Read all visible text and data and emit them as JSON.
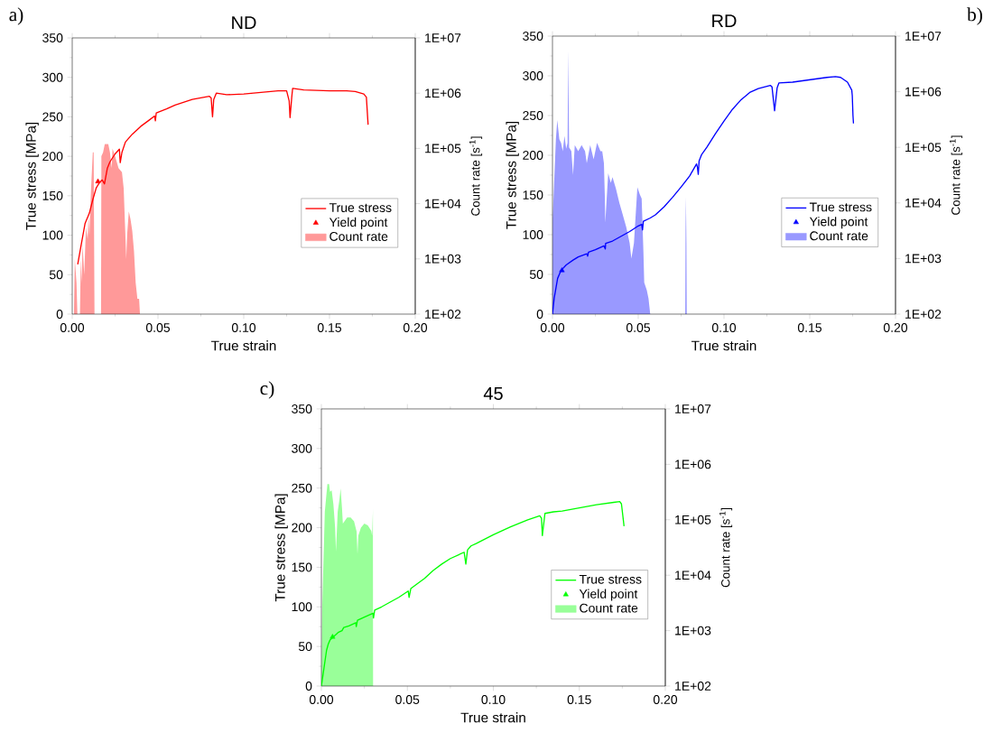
{
  "chart_data": [
    {
      "type": "line",
      "title": "ND",
      "xlabel": "True strain",
      "ylabel": "True stress [MPa]",
      "y2label": "Count rate [s$^{-1}$]",
      "annotations": [
        "a)"
      ],
      "xlim": [
        0,
        0.2
      ],
      "xticks": [
        {
          "value": 0,
          "label": "0.00"
        },
        {
          "value": 0.05,
          "label": "0.05"
        },
        {
          "value": 0.1,
          "label": "0.10"
        },
        {
          "value": 0.15,
          "label": "0.15"
        },
        {
          "value": 0.2,
          "label": "0.20"
        }
      ],
      "ylim": [
        0,
        350
      ],
      "yticks": [
        0,
        50,
        100,
        150,
        200,
        250,
        300,
        350
      ],
      "y2lim": [
        100,
        10000000
      ],
      "y2ticks": [
        {
          "value": 100,
          "label": "1E+02"
        },
        {
          "value": 1000,
          "label": "1E+03"
        },
        {
          "value": 10000,
          "label": "1E+04"
        },
        {
          "value": 100000,
          "label": "1E+05"
        },
        {
          "value": 1000000,
          "label": "1E+06"
        },
        {
          "value": 10000000,
          "label": "1E+07"
        }
      ],
      "log": "y2",
      "legend": "right",
      "series": [
        {
          "name": "True stress",
          "color": "#ff0000",
          "x": [
            0.0032,
            0.005,
            0.0075,
            0.01,
            0.012,
            0.014,
            0.016,
            0.0175,
            0.0188,
            0.0205,
            0.022,
            0.025,
            0.0275,
            0.028,
            0.029,
            0.031,
            0.035,
            0.04,
            0.045,
            0.048,
            0.0485,
            0.049,
            0.055,
            0.06,
            0.07,
            0.08,
            0.081,
            0.0818,
            0.0825,
            0.084,
            0.09,
            0.1,
            0.11,
            0.12,
            0.125,
            0.1265,
            0.127,
            0.128,
            0.1285,
            0.135,
            0.15,
            0.16,
            0.165,
            0.17,
            0.1715,
            0.1725
          ],
          "values": [
            63,
            85,
            115,
            128,
            145,
            160,
            167,
            170,
            165,
            185,
            193,
            203,
            209,
            192,
            205,
            218,
            228,
            238,
            246,
            251,
            245,
            255,
            260,
            265,
            272,
            276,
            274,
            250,
            272,
            280,
            278,
            279,
            281,
            283,
            283,
            270,
            249,
            275,
            286,
            284,
            283,
            283,
            282,
            279,
            275,
            240
          ]
        },
        {
          "name": "Yield point",
          "type": "scatter",
          "marker": "triangle",
          "color": "#ff0000",
          "x": [
            0.015
          ],
          "values": [
            168
          ]
        },
        {
          "name": "Count rate",
          "type": "area",
          "axis": "y2",
          "color": "#ff9999",
          "x": [
            0.001,
            0.0015,
            0.0025,
            0.003,
            0.0045,
            0.005,
            0.0055,
            0.006,
            0.007,
            0.008,
            0.009,
            0.0095,
            0.01,
            0.011,
            0.012,
            0.0125,
            0.013,
            0.0168,
            0.017,
            0.018,
            0.019,
            0.021,
            0.022,
            0.023,
            0.0235,
            0.025,
            0.027,
            0.029,
            0.03,
            0.0315,
            0.032,
            0.033,
            0.034,
            0.035,
            0.036,
            0.037,
            0.038,
            0.039,
            0.0395
          ],
          "values": [
            100,
            1000,
            370,
            100,
            100,
            1000,
            370,
            1900,
            520,
            3700,
            2300,
            6100,
            2700,
            19000,
            85000,
            85000,
            100,
            100,
            72000,
            85000,
            120000,
            120000,
            85000,
            44000,
            100000,
            72000,
            44000,
            37000,
            19000,
            1000,
            2700,
            7200,
            5200,
            3200,
            1400,
            370,
            190,
            190,
            100
          ]
        }
      ]
    },
    {
      "type": "line",
      "title": "RD",
      "xlabel": "True strain",
      "ylabel": "True stress [MPa]",
      "y2label": "Count rate [s$^{-1}$]",
      "annotations": [
        "b)"
      ],
      "xlim": [
        0,
        0.2
      ],
      "xticks": [
        {
          "value": 0,
          "label": "0.00"
        },
        {
          "value": 0.05,
          "label": "0.05"
        },
        {
          "value": 0.1,
          "label": "0.10"
        },
        {
          "value": 0.15,
          "label": "0.15"
        },
        {
          "value": 0.2,
          "label": "0.20"
        }
      ],
      "ylim": [
        0,
        350
      ],
      "yticks": [
        0,
        50,
        100,
        150,
        200,
        250,
        300,
        350
      ],
      "y2lim": [
        100,
        10000000
      ],
      "y2ticks": [
        {
          "value": 100,
          "label": "1E+02"
        },
        {
          "value": 1000,
          "label": "1E+03"
        },
        {
          "value": 10000,
          "label": "1E+04"
        },
        {
          "value": 100000,
          "label": "1E+05"
        },
        {
          "value": 1000000,
          "label": "1E+06"
        },
        {
          "value": 10000000,
          "label": "1E+07"
        }
      ],
      "log": "y2",
      "legend": "right",
      "series": [
        {
          "name": "True stress",
          "color": "#0000ff",
          "x": [
            0,
            0.001,
            0.003,
            0.005,
            0.008,
            0.012,
            0.015,
            0.02,
            0.0205,
            0.021,
            0.025,
            0.03,
            0.0308,
            0.031,
            0.035,
            0.04,
            0.045,
            0.05,
            0.052,
            0.0525,
            0.053,
            0.057,
            0.06,
            0.065,
            0.07,
            0.075,
            0.08,
            0.084,
            0.0845,
            0.085,
            0.0855,
            0.087,
            0.09,
            0.095,
            0.1,
            0.105,
            0.11,
            0.115,
            0.12,
            0.127,
            0.128,
            0.1295,
            0.131,
            0.132,
            0.14,
            0.15,
            0.16,
            0.165,
            0.168,
            0.172,
            0.1745,
            0.1748,
            0.1752,
            0.1755
          ],
          "values": [
            0,
            20,
            45,
            55,
            62,
            68,
            72,
            76,
            73,
            78,
            81,
            86,
            82,
            89,
            92,
            98,
            104,
            111,
            113,
            106,
            117,
            121,
            125,
            135,
            147,
            160,
            174,
            189,
            185,
            176,
            193,
            201,
            210,
            227,
            243,
            258,
            270,
            279,
            284,
            288,
            286,
            256,
            285,
            291,
            292,
            295,
            298,
            299,
            298,
            292,
            282,
            275,
            250,
            240
          ]
        },
        {
          "name": "Yield point",
          "type": "scatter",
          "marker": "triangle",
          "color": "#0000ff",
          "x": [
            0.0055
          ],
          "values": [
            55
          ]
        },
        {
          "name": "Count rate",
          "type": "area",
          "axis": "y2",
          "color": "#9999ff",
          "x": [
            0,
            0.0001,
            0.002,
            0.0028,
            0.004,
            0.005,
            0.006,
            0.007,
            0.008,
            0.0088,
            0.0092,
            0.0097,
            0.011,
            0.012,
            0.013,
            0.015,
            0.017,
            0.019,
            0.02,
            0.022,
            0.024,
            0.026,
            0.028,
            0.029,
            0.03,
            0.0305,
            0.0308,
            0.032,
            0.0325,
            0.034,
            0.035,
            0.037,
            0.039,
            0.041,
            0.043,
            0.045,
            0.046,
            0.0475,
            0.0495,
            0.051,
            0.052,
            0.053,
            0.0535,
            0.055,
            0.056,
            0.057,
            0.0774,
            0.0776,
            0.0778,
            0.0781,
            0.0783
          ],
          "values": [
            100,
            5200,
            140000,
            310000,
            140000,
            120000,
            85000,
            160000,
            94000,
            120000,
            5500000,
            100000,
            85000,
            32000,
            110000,
            85000,
            110000,
            85000,
            52000,
            110000,
            61000,
            120000,
            85000,
            85000,
            52000,
            14000,
            4400,
            19000,
            34000,
            23000,
            29000,
            18000,
            10000,
            6100,
            3700,
            1900,
            1000,
            1900,
            19000,
            14000,
            12000,
            1400,
            370,
            270,
            190,
            100,
            100,
            3700,
            13000,
            1900,
            100
          ]
        }
      ]
    },
    {
      "type": "line",
      "title": "45",
      "xlabel": "True strain",
      "ylabel": "True stress [MPa]",
      "y2label": "Count rate [s$^{-1}$]",
      "annotations": [
        "c)"
      ],
      "xlim": [
        0,
        0.2
      ],
      "xticks": [
        {
          "value": 0,
          "label": "0.00"
        },
        {
          "value": 0.05,
          "label": "0.05"
        },
        {
          "value": 0.1,
          "label": "0.10"
        },
        {
          "value": 0.15,
          "label": "0.15"
        },
        {
          "value": 0.2,
          "label": "0.20"
        }
      ],
      "ylim": [
        0,
        350
      ],
      "yticks": [
        0,
        50,
        100,
        150,
        200,
        250,
        300,
        350
      ],
      "y2lim": [
        100,
        10000000
      ],
      "y2ticks": [
        {
          "value": 100,
          "label": "1E+02"
        },
        {
          "value": 1000,
          "label": "1E+03"
        },
        {
          "value": 10000,
          "label": "1E+04"
        },
        {
          "value": 100000,
          "label": "1E+05"
        },
        {
          "value": 1000000,
          "label": "1E+06"
        },
        {
          "value": 10000000,
          "label": "1E+07"
        }
      ],
      "log": "y2",
      "legend": "right",
      "series": [
        {
          "name": "True stress",
          "color": "#00ff00",
          "x": [
            0,
            0.001,
            0.002,
            0.003,
            0.004,
            0.005,
            0.007,
            0.009,
            0.01,
            0.012,
            0.013,
            0.016,
            0.02,
            0.0203,
            0.021,
            0.025,
            0.03,
            0.0303,
            0.031,
            0.035,
            0.04,
            0.045,
            0.0505,
            0.051,
            0.052,
            0.055,
            0.06,
            0.065,
            0.07,
            0.075,
            0.083,
            0.084,
            0.085,
            0.087,
            0.09,
            0.1,
            0.11,
            0.12,
            0.127,
            0.128,
            0.1285,
            0.13,
            0.135,
            0.14,
            0.15,
            0.16,
            0.17,
            0.1735,
            0.1745,
            0.176
          ],
          "values": [
            0,
            15,
            30,
            45,
            53,
            58,
            62,
            66,
            68,
            70,
            74,
            76,
            80,
            75,
            83,
            87,
            92,
            86,
            96,
            100,
            106,
            112,
            120,
            112,
            123,
            128,
            136,
            146,
            154,
            161,
            169,
            154,
            172,
            177,
            180,
            191,
            201,
            210,
            215,
            212,
            190,
            218,
            220,
            221,
            225,
            229,
            232,
            233,
            230,
            202
          ]
        },
        {
          "name": "Yield point",
          "type": "scatter",
          "marker": "triangle",
          "color": "#00ff00",
          "x": [
            0.0065
          ],
          "values": [
            62
          ]
        },
        {
          "name": "Count rate",
          "type": "area",
          "axis": "y2",
          "color": "#99ff99",
          "x": [
            0,
            0.0005,
            0.002,
            0.0035,
            0.0045,
            0.005,
            0.006,
            0.007,
            0.008,
            0.0085,
            0.0095,
            0.0105,
            0.0112,
            0.012,
            0.0125,
            0.015,
            0.017,
            0.019,
            0.0205,
            0.021,
            0.0215,
            0.023,
            0.025,
            0.027,
            0.029,
            0.0295,
            0.03,
            0.0302
          ],
          "values": [
            100,
            2700,
            140000,
            440000,
            440000,
            320000,
            340000,
            190000,
            72000,
            27000,
            140000,
            230000,
            370000,
            160000,
            85000,
            110000,
            110000,
            94000,
            61000,
            24000,
            52000,
            72000,
            85000,
            79000,
            63000,
            52000,
            160000,
            100
          ]
        }
      ]
    }
  ]
}
